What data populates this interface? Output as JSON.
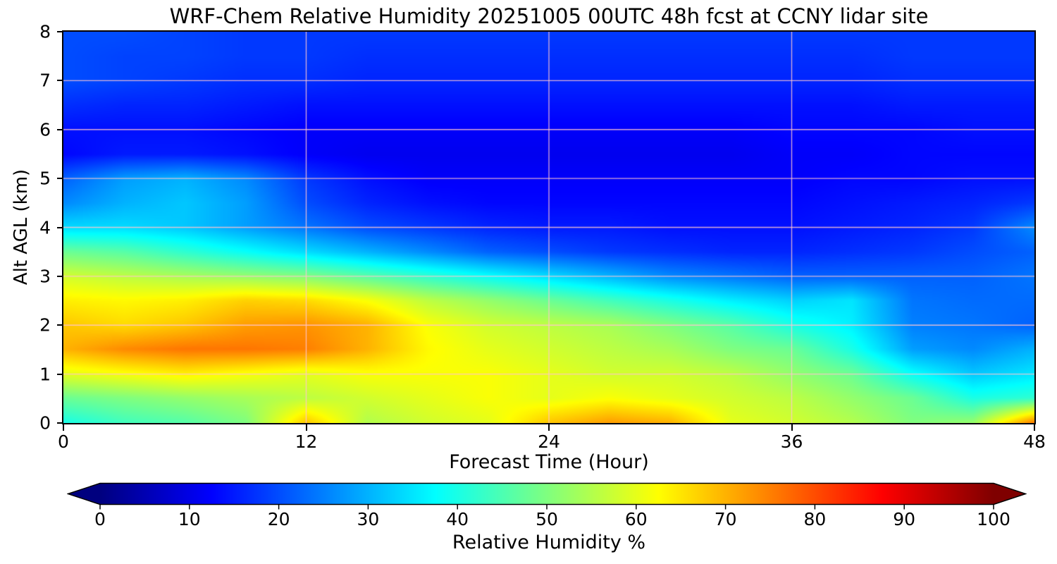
{
  "chart_data": {
    "type": "heatmap",
    "title": "WRF-Chem Relative Humidity 20251005 00UTC 48h fcst at CCNY lidar site",
    "xlabel": "Forecast Time (Hour)",
    "ylabel": "Alt AGL (km)",
    "xlim": [
      0,
      48
    ],
    "ylim": [
      0,
      8
    ],
    "x_ticks": [
      0,
      12,
      24,
      36,
      48
    ],
    "y_ticks": [
      0,
      1,
      2,
      3,
      4,
      5,
      6,
      7,
      8
    ],
    "grid_x": [
      12,
      24,
      36
    ],
    "grid_y": [
      1,
      2,
      3,
      4,
      5,
      6,
      7
    ],
    "grid_color": "#ffc6d0",
    "grid_on": true,
    "x_hours": [
      0,
      3,
      6,
      9,
      12,
      15,
      18,
      21,
      24,
      27,
      30,
      33,
      36,
      39,
      42,
      45,
      48
    ],
    "y_alt_km": [
      8,
      7.5,
      7,
      6.5,
      6,
      5.5,
      5,
      4.5,
      4,
      3.5,
      3,
      2.5,
      2,
      1.5,
      1,
      0.5,
      0
    ],
    "values_note": "Relative humidity % grid, rows ordered top (8 km) to bottom (0 km), columns hour 0 to 48",
    "values": [
      [
        20,
        20,
        19,
        18,
        18,
        18,
        18,
        18,
        18,
        18,
        18,
        18,
        18,
        18,
        18,
        18,
        18
      ],
      [
        20,
        19,
        19,
        18,
        18,
        17,
        17,
        17,
        17,
        17,
        17,
        17,
        17,
        17,
        18,
        18,
        18
      ],
      [
        20,
        19,
        18,
        17,
        17,
        16,
        16,
        16,
        16,
        16,
        16,
        16,
        16,
        16,
        17,
        17,
        17
      ],
      [
        17,
        16,
        16,
        15,
        14,
        14,
        14,
        14,
        14,
        14,
        14,
        14,
        14,
        14,
        15,
        15,
        15
      ],
      [
        14,
        14,
        14,
        13,
        12,
        12,
        12,
        12,
        12,
        12,
        12,
        12,
        13,
        13,
        13,
        14,
        14
      ],
      [
        13,
        15,
        15,
        14,
        12,
        11,
        11,
        11,
        11,
        11,
        11,
        11,
        12,
        12,
        13,
        13,
        13
      ],
      [
        22,
        28,
        30,
        26,
        18,
        14,
        12,
        12,
        12,
        12,
        12,
        12,
        12,
        13,
        13,
        14,
        14
      ],
      [
        26,
        30,
        32,
        28,
        20,
        16,
        14,
        13,
        13,
        13,
        13,
        13,
        13,
        14,
        15,
        16,
        18
      ],
      [
        34,
        34,
        32,
        28,
        24,
        20,
        18,
        16,
        15,
        15,
        14,
        14,
        14,
        15,
        16,
        18,
        26
      ],
      [
        48,
        46,
        42,
        38,
        34,
        30,
        26,
        22,
        20,
        18,
        17,
        16,
        16,
        17,
        18,
        20,
        22
      ],
      [
        58,
        56,
        54,
        52,
        50,
        46,
        42,
        38,
        34,
        30,
        26,
        24,
        22,
        22,
        22,
        22,
        24
      ],
      [
        64,
        63,
        64,
        67,
        66,
        62,
        56,
        52,
        48,
        44,
        40,
        36,
        33,
        35,
        24,
        23,
        23
      ],
      [
        68,
        66,
        68,
        72,
        73,
        70,
        62,
        58,
        56,
        54,
        50,
        46,
        40,
        36,
        25,
        24,
        22
      ],
      [
        70,
        74,
        76,
        76,
        75,
        70,
        63,
        60,
        58,
        56,
        54,
        50,
        48,
        40,
        28,
        26,
        30
      ],
      [
        60,
        62,
        64,
        62,
        60,
        62,
        62,
        62,
        60,
        58,
        58,
        56,
        52,
        48,
        38,
        32,
        35
      ],
      [
        48,
        50,
        52,
        54,
        56,
        58,
        60,
        62,
        60,
        62,
        60,
        58,
        56,
        52,
        48,
        40,
        42
      ],
      [
        40,
        44,
        46,
        50,
        68,
        55,
        58,
        60,
        68,
        72,
        70,
        60,
        58,
        55,
        50,
        52,
        75
      ]
    ],
    "colorbar": {
      "label": "Relative Humidity %",
      "ticks": [
        0,
        10,
        20,
        30,
        40,
        50,
        60,
        70,
        80,
        90,
        100
      ],
      "min": 0,
      "max": 100,
      "colors": [
        "#00007f",
        "#0000ff",
        "#007fff",
        "#00ffff",
        "#7fff7f",
        "#ffff00",
        "#ff7f00",
        "#ff0000",
        "#7f0000"
      ],
      "extend_under_color": "#00007f",
      "extend_over_color": "#7f0000"
    }
  }
}
